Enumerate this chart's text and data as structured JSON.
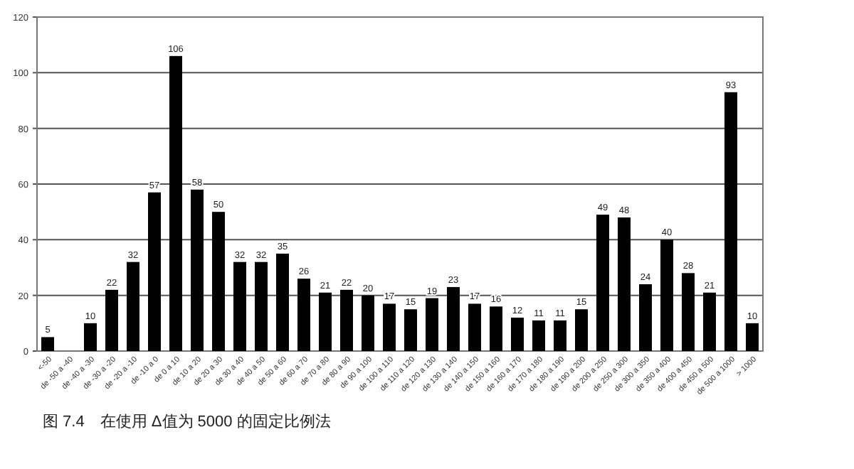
{
  "chart_data": {
    "type": "bar",
    "categories": [
      "<-50",
      "de -50 a -40",
      "de -40 a -30",
      "de -30 a -20",
      "de -20 a -10",
      "de -10 a 0",
      "de 0 a 10",
      "de 10 a 20",
      "de 20 a 30",
      "de 30 a 40",
      "de 40 a 50",
      "de 50 a 60",
      "de 60 a 70",
      "de 70 a 80",
      "de 80 a 90",
      "de 90 a 100",
      "de 100 a 110",
      "de 110 a 120",
      "de 120 a 130",
      "de 130 a 140",
      "de 140 a 150",
      "de 150 a 160",
      "de 160 a 170",
      "de 170 a 180",
      "de 180 a 190",
      "de 190 a 200",
      "de 200 a 250",
      "de 250 a 300",
      "de 300 a 350",
      "de 350 a 400",
      "de 400 a 450",
      "de 450 a 500",
      "de 500 a 1000",
      "> 1000"
    ],
    "values": [
      5,
      null,
      10,
      22,
      32,
      57,
      106,
      58,
      50,
      32,
      32,
      35,
      26,
      21,
      22,
      20,
      17,
      15,
      19,
      23,
      17,
      16,
      12,
      11,
      11,
      15,
      49,
      48,
      24,
      40,
      28,
      21,
      93,
      10
    ],
    "color": "#000000",
    "ylim": [
      0,
      120
    ],
    "yticks": [
      0,
      20,
      40,
      60,
      80,
      100,
      120
    ],
    "grid": "y",
    "data_labels": true,
    "annotations": [
      "图 7.4　在使用 Δ值为 5000 的固定比例法"
    ]
  }
}
